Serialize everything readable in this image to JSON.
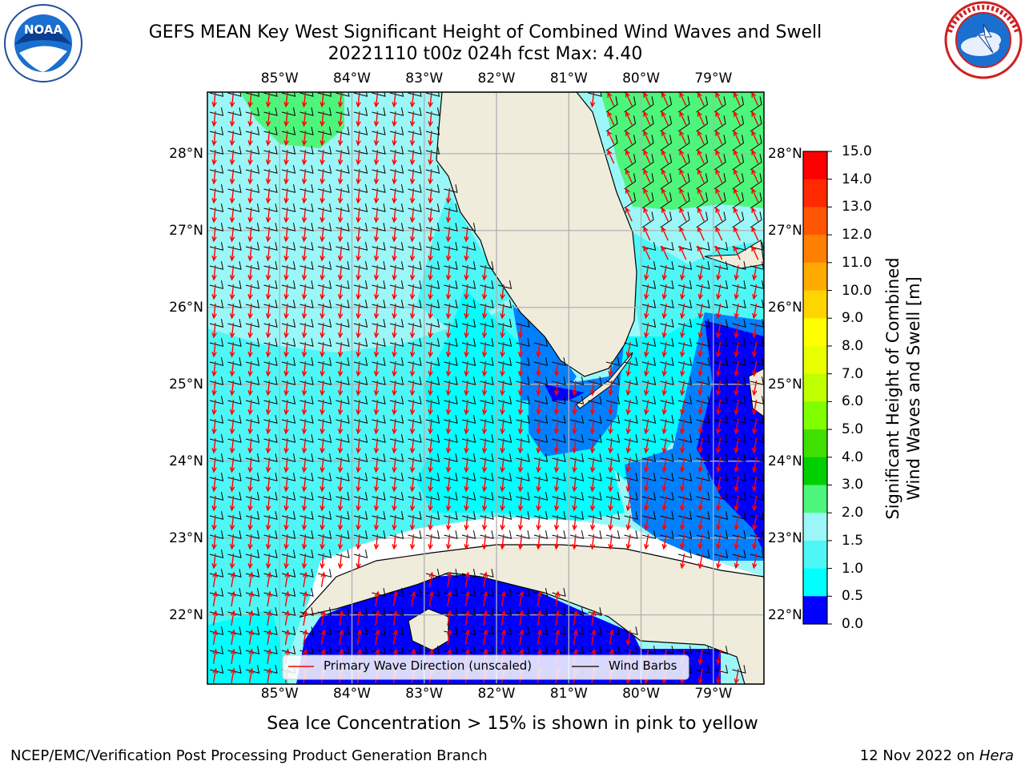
{
  "header": {
    "title_line1": "GEFS MEAN Key West Significant Height of Combined Wind Waves and Swell",
    "title_line2": "20221110 t00z 024h fcst   Max: 4.40"
  },
  "logos": {
    "left": {
      "name": "noaa-logo",
      "text": "NOAA",
      "ring_text": "NATIONAL OCEANIC AND ATMOSPHERIC ADMINISTRATION · U.S. DEPARTMENT OF COMMERCE"
    },
    "right": {
      "name": "nws-logo",
      "ring_text": "NATIONAL WEATHER SERVICE"
    }
  },
  "map": {
    "lon_labels": [
      "85°W",
      "84°W",
      "83°W",
      "82°W",
      "81°W",
      "80°W",
      "79°W"
    ],
    "lat_labels": [
      "28°N",
      "27°N",
      "26°N",
      "25°N",
      "24°N",
      "23°N",
      "22°N"
    ],
    "lon_values": [
      -85,
      -84,
      -83,
      -82,
      -81,
      -80,
      -79
    ],
    "lat_values": [
      28,
      27,
      26,
      25,
      24,
      23,
      22
    ],
    "extent": {
      "lon_min": -86.0,
      "lon_max": -78.3,
      "lat_min": 21.1,
      "lat_max": 28.8
    },
    "colors": {
      "land": "#efecdc",
      "ocean_default": "#9bf7f7",
      "grid": "#b0b0b0",
      "wave_arrow": "#ff0000",
      "wind_barb": "#000000"
    },
    "legend": {
      "wave_label": "Primary Wave Direction (unscaled)",
      "wind_label": "Wind Barbs"
    }
  },
  "colorbar": {
    "label_line1": "Significant Height of Combined",
    "label_line2": "Wind Waves and Swell [m]",
    "ticks": [
      "15.0",
      "14.0",
      "13.0",
      "12.0",
      "11.0",
      "10.0",
      "9.0",
      "8.0",
      "7.0",
      "6.0",
      "5.0",
      "4.0",
      "3.0",
      "2.0",
      "1.5",
      "1.0",
      "0.5",
      "0.0"
    ],
    "colors": [
      "#ff0000",
      "#ff2a00",
      "#ff5500",
      "#ff7f00",
      "#ffaa00",
      "#ffd400",
      "#ffff00",
      "#e9ff00",
      "#bfff00",
      "#7fff00",
      "#3fdf00",
      "#00cf00",
      "#4ef57b",
      "#9bf7f7",
      "#4ff6f6",
      "#00ffff",
      "#0080ff",
      "#0000ff"
    ]
  },
  "footer": {
    "sea_ice_note": "Sea Ice Concentration > 15% is shown in pink to yellow",
    "left": "NCEP/EMC/Verification Post Processing Product Generation Branch",
    "right_prefix": "12 Nov 2022 on ",
    "right_machine": "Hera"
  }
}
